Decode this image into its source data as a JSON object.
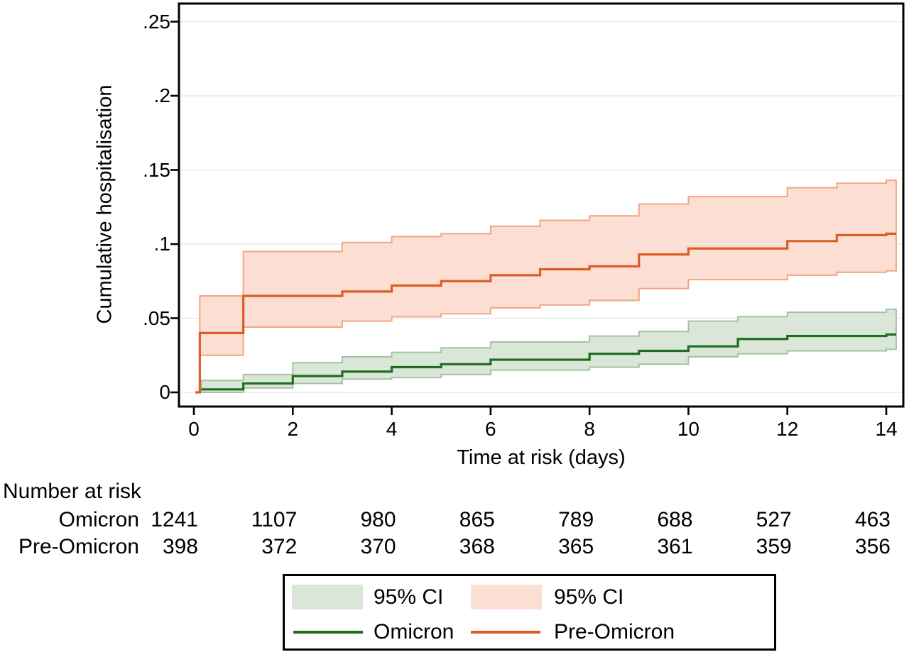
{
  "chart_data": {
    "type": "line",
    "variant": "kaplan-meier-step-cumulative-incidence",
    "title": "",
    "xlabel": "Time at risk (days)",
    "ylabel": "Cumulative hospitalisation",
    "xlim": [
      0,
      14.2
    ],
    "ylim": [
      0,
      0.262
    ],
    "xticks": [
      0,
      2,
      4,
      6,
      8,
      10,
      12,
      14
    ],
    "yticks": [
      0,
      0.05,
      0.1,
      0.15,
      0.2,
      0.25
    ],
    "ytick_labels": [
      "0",
      ".05",
      ".1",
      ".15",
      ".2",
      ".25"
    ],
    "grid": "horizontal",
    "legend_position": "bottom",
    "x_end": 14.2,
    "colors": {
      "axis": "#000000",
      "gridline": "#e9e9e9",
      "background": "#ffffff"
    },
    "series": [
      {
        "name": "Omicron",
        "ci_label": "95% CI",
        "line_color": "#1f6e1f",
        "band_fill": "#dae7d8",
        "band_edge": "#a3c2a1",
        "starts_at_zero": false,
        "steps": {
          "x": [
            0.15,
            1,
            2,
            3,
            4,
            5,
            6,
            8,
            9,
            10,
            11,
            12,
            14
          ],
          "y": [
            0.002,
            0.006,
            0.011,
            0.014,
            0.017,
            0.019,
            0.022,
            0.026,
            0.028,
            0.031,
            0.036,
            0.038,
            0.039
          ],
          "upper": [
            0.008,
            0.012,
            0.02,
            0.024,
            0.027,
            0.03,
            0.034,
            0.038,
            0.041,
            0.048,
            0.051,
            0.054,
            0.056
          ],
          "lower": [
            0.0,
            0.003,
            0.006,
            0.009,
            0.01,
            0.012,
            0.015,
            0.017,
            0.019,
            0.024,
            0.026,
            0.028,
            0.029
          ]
        }
      },
      {
        "name": "Pre-Omicron",
        "ci_label": "95% CI",
        "line_color": "#dd5d24",
        "band_fill": "#fcdfd2",
        "band_edge": "#efa683",
        "starts_at_zero": true,
        "steps": {
          "x": [
            0.12,
            1,
            3,
            4,
            5,
            6,
            7,
            8,
            9,
            10,
            12,
            13,
            14
          ],
          "y": [
            0.04,
            0.065,
            0.068,
            0.072,
            0.075,
            0.079,
            0.083,
            0.085,
            0.093,
            0.097,
            0.102,
            0.106,
            0.107
          ],
          "upper": [
            0.065,
            0.095,
            0.101,
            0.105,
            0.107,
            0.112,
            0.116,
            0.119,
            0.127,
            0.132,
            0.138,
            0.141,
            0.143
          ],
          "lower": [
            0.025,
            0.044,
            0.048,
            0.051,
            0.053,
            0.057,
            0.059,
            0.062,
            0.07,
            0.076,
            0.079,
            0.081,
            0.082
          ]
        }
      }
    ]
  },
  "risk_table": {
    "title": "Number at risk",
    "days": [
      0,
      2,
      4,
      6,
      8,
      10,
      12,
      14
    ],
    "rows": [
      {
        "label": "Omicron",
        "values": [
          "1241",
          "1107",
          "980",
          "865",
          "789",
          "688",
          "527",
          "463"
        ]
      },
      {
        "label": "Pre-Omicron",
        "values": [
          "398",
          "372",
          "370",
          "368",
          "365",
          "361",
          "359",
          "356"
        ]
      }
    ]
  },
  "legend": {
    "items": [
      {
        "label": "95% CI",
        "swatch": "band",
        "series": "Omicron"
      },
      {
        "label": "95% CI",
        "swatch": "band",
        "series": "Pre-Omicron"
      },
      {
        "label": "Omicron",
        "swatch": "line",
        "series": "Omicron"
      },
      {
        "label": "Pre-Omicron",
        "swatch": "line",
        "series": "Pre-Omicron"
      }
    ]
  }
}
